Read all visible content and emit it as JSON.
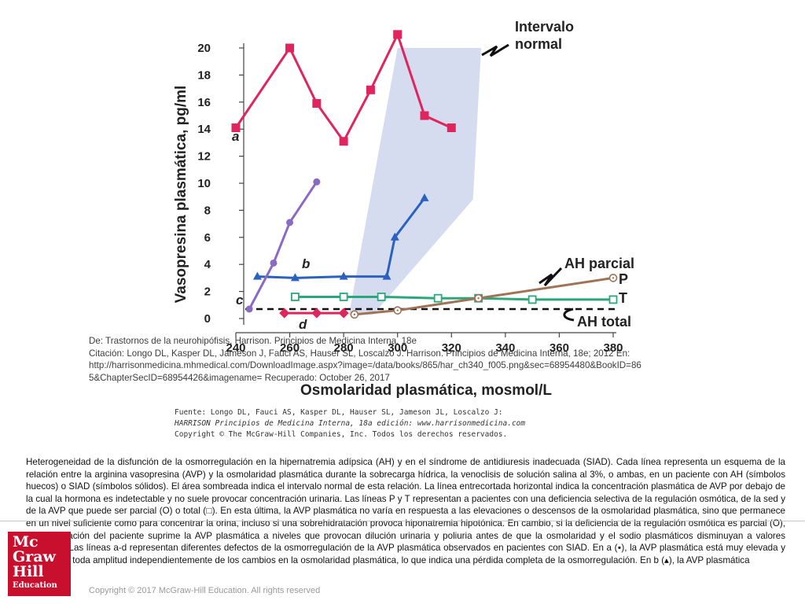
{
  "chart_data": {
    "type": "line",
    "xlabel": "Osmolaridad plasmática, mosmol/L",
    "ylabel": "Vasopresina plasmática, pg/ml",
    "xlim": [
      240,
      380
    ],
    "ylim": [
      0,
      20
    ],
    "xticks": [
      240,
      260,
      280,
      300,
      320,
      340,
      360,
      380
    ],
    "yticks": [
      0,
      2,
      4,
      6,
      8,
      10,
      12,
      14,
      16,
      18,
      20
    ],
    "grid": false,
    "normal_range": {
      "label": "Intervalo normal",
      "polygon": [
        [
          282,
          0.3
        ],
        [
          300,
          20
        ],
        [
          331,
          20
        ],
        [
          328,
          8.8
        ],
        [
          291,
          0.3
        ]
      ],
      "color": "#d6dcf0"
    },
    "threshold": {
      "y": 0.7,
      "style": "dashed",
      "color": "#111111"
    },
    "series": [
      {
        "name": "a",
        "color": "#e0245e",
        "marker": "square",
        "x": [
          240,
          260,
          270,
          280,
          290,
          300,
          310,
          320
        ],
        "y": [
          14.1,
          20.0,
          15.9,
          13.1,
          16.9,
          21.0,
          15.0,
          14.1
        ]
      },
      {
        "name": "b",
        "color": "#2b62c0",
        "marker": "triangle",
        "x": [
          248,
          262,
          280,
          296,
          299,
          310
        ],
        "y": [
          3.1,
          3.0,
          3.1,
          3.1,
          6.0,
          8.9
        ]
      },
      {
        "name": "c",
        "color": "#8a6bc4",
        "marker": "circle",
        "x": [
          245,
          254,
          260,
          270
        ],
        "y": [
          0.7,
          4.1,
          7.1,
          10.1
        ]
      },
      {
        "name": "d",
        "color": "#e0245e",
        "marker": "diamond",
        "x": [
          258,
          270,
          280
        ],
        "y": [
          0.4,
          0.4,
          0.4
        ]
      },
      {
        "name": "T",
        "color": "#2aa87a",
        "marker": "square-open",
        "x": [
          262,
          280,
          294,
          315,
          330,
          350,
          380
        ],
        "y": [
          1.6,
          1.6,
          1.6,
          1.5,
          1.5,
          1.4,
          1.4
        ]
      },
      {
        "name": "P",
        "color": "#a07256",
        "marker": "circle-open",
        "x": [
          284,
          300,
          330,
          380
        ],
        "y": [
          0.3,
          0.6,
          1.5,
          3.0
        ]
      }
    ],
    "annotations": [
      {
        "text": "AH parcial",
        "points_to": "P"
      },
      {
        "text": "AH total",
        "points_to": "threshold"
      }
    ]
  },
  "figure": {
    "normal_label_1": "Intervalo",
    "normal_label_2": "normal",
    "ah_parcial_label": "AH parcial",
    "ah_total_label": "AH total",
    "label_a": "a",
    "label_b": "b",
    "label_c": "c",
    "label_d": "d",
    "label_P": "P",
    "label_T": "T",
    "source_1": "Fuente: Longo DL, Fauci AS, Kasper DL, Hauser SL, Jameson JL, Loscalzo J:",
    "source_2": "HARRISON Principios de Medicina Interna, 18a edición: www.harrisonmedicina.com",
    "source_3": "Copyright © The McGraw-Hill Companies, Inc. Todos los derechos reservados."
  },
  "caption": "Heterogeneidad de la disfunción de la osmorregulación en la hipernatremia adípsica (AH) y en el síndrome de antidiuresis inadecuada (SIAD). Cada línea representa un esquema de la relación entre la arginina vasopresina (AVP) y la osmolaridad plasmática durante la sobrecarga hídrica, la venoclisis de solución salina al 3%, o ambas, en un paciente con AH (símbolos huecos) o SIAD (símbolos sólidos). El área sombreada indica el intervalo normal de esta relación. La línea entrecortada horizontal indica la concentración plasmática de AVP por debajo de la cual la hormona es indetectable y no suele provocar concentración urinaria. Las líneas P y T representan a pacientes con una deficiencia selectiva de la regulación osmótica, de la sed y de la AVP que puede ser parcial (O) o total (□). En esta última, la AVP plasmática no varía en respuesta a las elevaciones o descensos de la osmolaridad plasmática, sino que permanece en un nivel suficiente como para concentrar la orina, incluso si una sobrehidratación provoca hiponatremia hipotónica. En cambio, si la deficiencia de la regulación osmótica es parcial (O), la rehidratación del paciente suprime la AVP plasmática a niveles que provocan dilución urinaria y poliuria antes de que la osmolaridad y el sodio plasmáticos disminuyan a valores normales. Las líneas a-d representan diferentes defectos de la osmorregulación de la AVP plasmática observados en pacientes con SIAD. En a (▪), la AVP plasmática está muy elevada y fluctúa con toda amplitud independientemente de los cambios en la osmolaridad plasmática, lo que indica una pérdida completa de la osmorregulación. En b (▴), la AVP plasmática",
  "citation": {
    "line1": "De: Trastornos de la neurohipófisis, Harrison. Principios de Medicina Interna, 18e",
    "line2": "Citación: Longo DL, Kasper DL, Jameson J, Fauci AS, Hauser SL, Loscalzo J. Harrison. Principios de Medicina Interna, 18e; 2012 En:",
    "line3": "http://harrisonmedicina.mhmedical.com/DownloadImage.aspx?image=/data/books/865/har_ch340_f005.png&sec=68954480&BookID=86",
    "line4": "5&ChapterSecID=68954426&imagename= Recuperado: October 26, 2017"
  },
  "copyright": "Copyright © 2017 McGraw-Hill Education. All rights reserved",
  "logo": {
    "line1": "Mc",
    "line2": "Graw",
    "line3": "Hill",
    "line4": "Education",
    "bg": "#c8102e"
  }
}
